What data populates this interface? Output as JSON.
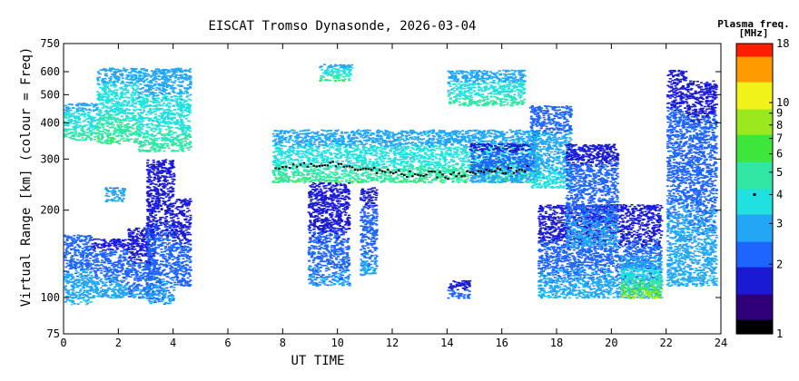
{
  "chart_data": {
    "type": "heatmap",
    "title": "EISCAT Tromso Dynasonde, 2026-03-04",
    "xlabel": "UT TIME",
    "ylabel": "Virtual Range [km] (colour = Freq)",
    "x_ticks": [
      0,
      2,
      4,
      6,
      8,
      10,
      12,
      14,
      16,
      18,
      20,
      22,
      24
    ],
    "xlim": [
      0,
      24
    ],
    "y_scale": "log",
    "y_ticks": [
      75,
      100,
      200,
      300,
      400,
      500,
      600,
      750
    ],
    "ylim": [
      75,
      750
    ],
    "colorbar": {
      "title_line1": "Plasma freq.",
      "title_line2": "[MHz]",
      "scale": "log",
      "range": [
        1,
        18
      ],
      "ticks": [
        1,
        2,
        3,
        4,
        5,
        6,
        7,
        8,
        9,
        10,
        18
      ],
      "marker_value": 4
    },
    "echo_regions": [
      {
        "t0": 0.0,
        "t1": 1.0,
        "h0": 95,
        "h1": 165,
        "f0": 2.0,
        "f1": 3.6
      },
      {
        "t0": 1.0,
        "t1": 2.3,
        "h0": 100,
        "h1": 160,
        "f0": 1.8,
        "f1": 3.4
      },
      {
        "t0": 2.3,
        "t1": 3.3,
        "h0": 100,
        "h1": 175,
        "f0": 1.5,
        "f1": 3.0
      },
      {
        "t0": 3.0,
        "t1": 4.0,
        "h0": 95,
        "h1": 300,
        "f0": 1.5,
        "f1": 3.0
      },
      {
        "t0": 4.0,
        "t1": 4.6,
        "h0": 110,
        "h1": 220,
        "f0": 1.6,
        "f1": 2.6
      },
      {
        "t0": 1.5,
        "t1": 2.2,
        "h0": 215,
        "h1": 240,
        "f0": 2.5,
        "f1": 3.0
      },
      {
        "t0": 0.0,
        "t1": 1.2,
        "h0": 350,
        "h1": 470,
        "f0": 3.0,
        "f1": 5.5
      },
      {
        "t0": 1.2,
        "t1": 2.7,
        "h0": 340,
        "h1": 620,
        "f0": 3.0,
        "f1": 6.0
      },
      {
        "t0": 2.7,
        "t1": 4.6,
        "h0": 320,
        "h1": 620,
        "f0": 2.8,
        "f1": 5.5
      },
      {
        "t0": 7.6,
        "t1": 17.3,
        "h0": 250,
        "h1": 380,
        "f0": 2.8,
        "f1": 6.0
      },
      {
        "t0": 9.3,
        "t1": 10.5,
        "h0": 560,
        "h1": 640,
        "f0": 3.0,
        "f1": 6.0
      },
      {
        "t0": 8.9,
        "t1": 10.4,
        "h0": 110,
        "h1": 250,
        "f0": 1.5,
        "f1": 3.0
      },
      {
        "t0": 10.8,
        "t1": 11.4,
        "h0": 120,
        "h1": 240,
        "f0": 1.8,
        "f1": 3.0
      },
      {
        "t0": 14.0,
        "t1": 14.8,
        "h0": 100,
        "h1": 115,
        "f0": 1.6,
        "f1": 2.5
      },
      {
        "t0": 14.0,
        "t1": 16.8,
        "h0": 460,
        "h1": 610,
        "f0": 2.8,
        "f1": 5.5
      },
      {
        "t0": 14.8,
        "t1": 17.2,
        "h0": 250,
        "h1": 340,
        "f0": 1.8,
        "f1": 3.2
      },
      {
        "t0": 17.0,
        "t1": 18.5,
        "h0": 240,
        "h1": 460,
        "f0": 2.2,
        "f1": 4.0
      },
      {
        "t0": 17.3,
        "t1": 21.8,
        "h0": 100,
        "h1": 210,
        "f0": 1.5,
        "f1": 3.6
      },
      {
        "t0": 18.3,
        "t1": 20.2,
        "h0": 150,
        "h1": 340,
        "f0": 1.8,
        "f1": 3.2
      },
      {
        "t0": 20.3,
        "t1": 21.8,
        "h0": 100,
        "h1": 140,
        "f0": 2.5,
        "f1": 10.0
      },
      {
        "t0": 22.0,
        "t1": 22.7,
        "h0": 110,
        "h1": 610,
        "f0": 1.8,
        "f1": 3.5
      },
      {
        "t0": 22.7,
        "t1": 23.8,
        "h0": 110,
        "h1": 560,
        "f0": 1.8,
        "f1": 3.4
      }
    ],
    "foF2_trace": [
      {
        "t": 7.7,
        "h": 285
      },
      {
        "t": 9.0,
        "h": 290
      },
      {
        "t": 10.0,
        "h": 290
      },
      {
        "t": 11.0,
        "h": 280
      },
      {
        "t": 12.0,
        "h": 270
      },
      {
        "t": 13.0,
        "h": 268
      },
      {
        "t": 14.0,
        "h": 265
      },
      {
        "t": 15.0,
        "h": 270
      },
      {
        "t": 16.0,
        "h": 275
      },
      {
        "t": 17.0,
        "h": 280
      }
    ],
    "colors": {
      "frame": "#000000",
      "background": "#ffffff",
      "trace": "#000000",
      "colormap": [
        "#000000",
        "#30007a",
        "#1b1bd6",
        "#1e64ff",
        "#22a6f5",
        "#20e0e0",
        "#31e7a4",
        "#3ee63b",
        "#9be81e",
        "#f1f219",
        "#ff9a00",
        "#ff1e00"
      ]
    }
  }
}
